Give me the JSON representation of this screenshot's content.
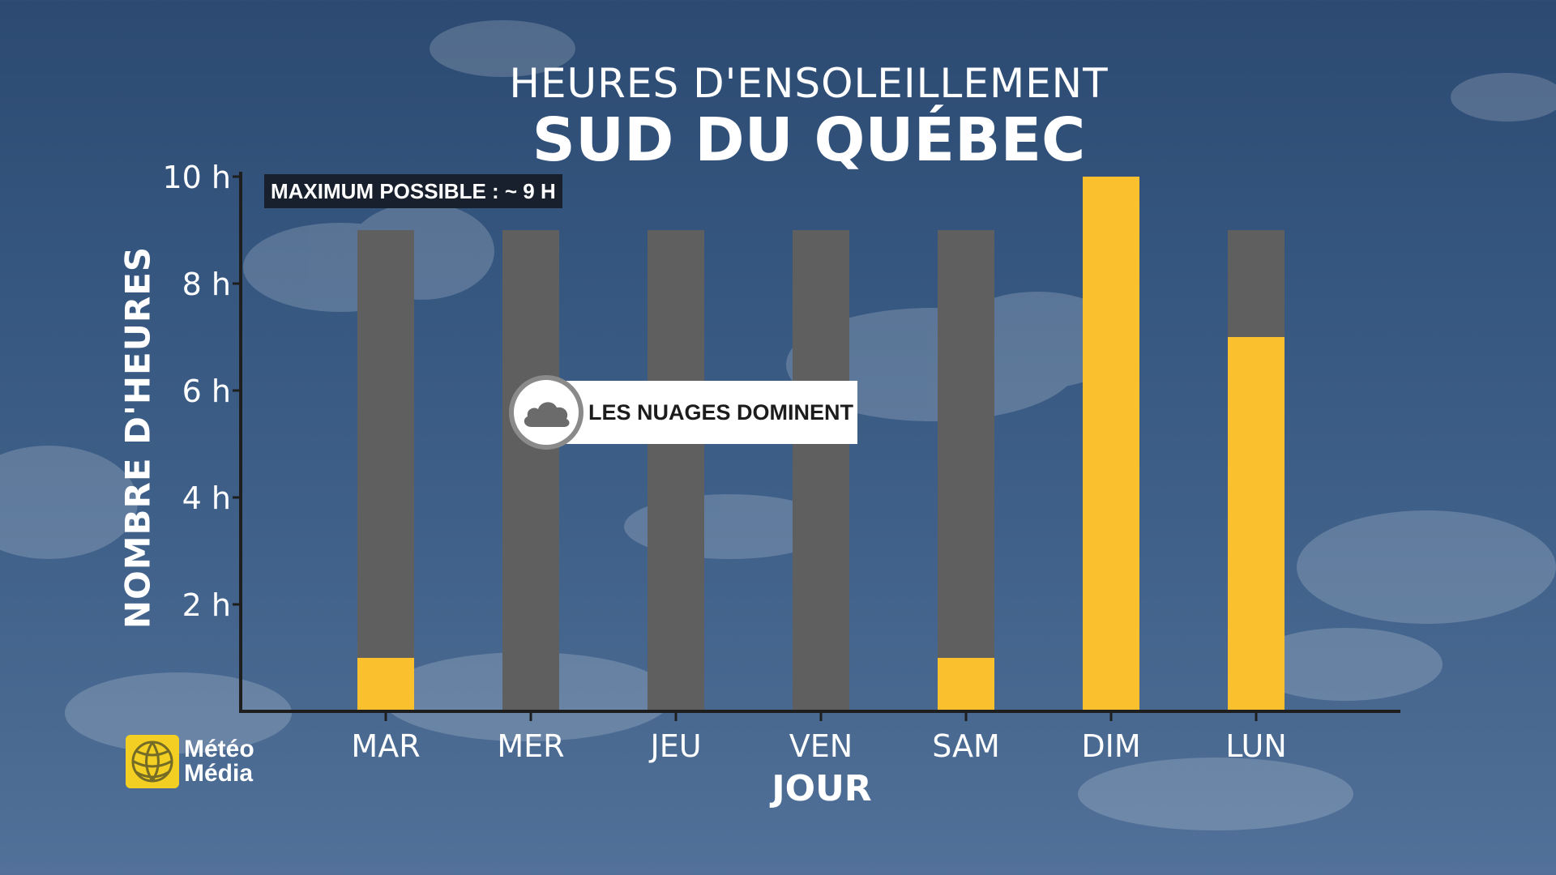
{
  "titles": {
    "top": "HEURES D'ENSOLEILLEMENT",
    "main": "SUD DU QUÉBEC"
  },
  "annotation": {
    "max_possible": "MAXIMUM POSSIBLE : ~ 9 H",
    "cloud_callout": "LES NUAGES DOMINENT",
    "cloud_icon": "cloud-icon"
  },
  "logo": {
    "line1": "Météo",
    "line2": "Média",
    "color": "#f2cf22"
  },
  "colors": {
    "sun": "#fbc02d",
    "possible": "#5f5f5f",
    "axis": "#1e1e1e",
    "text": "#ffffff"
  },
  "chart_data": {
    "type": "bar",
    "title": "HEURES D'ENSOLEILLEMENT",
    "subtitle": "SUD DU QUÉBEC",
    "xlabel": "JOUR",
    "ylabel": "NOMBRE D'HEURES",
    "ylim": [
      0,
      10
    ],
    "yticks": [
      2,
      4,
      6,
      8,
      10
    ],
    "ytick_labels": [
      "2 h",
      "4 h",
      "6 h",
      "8 h",
      "10 h"
    ],
    "categories": [
      "MAR",
      "MER",
      "JEU",
      "VEN",
      "SAM",
      "DIM",
      "LUN"
    ],
    "series": [
      {
        "values": [
          9,
          9,
          9,
          9,
          9,
          9,
          9
        ],
        "color": "#5f5f5f"
      },
      {
        "values": [
          1,
          0,
          0,
          0,
          1,
          10,
          7
        ],
        "color": "#fbc02d"
      }
    ],
    "grid": false,
    "legend": "none"
  }
}
